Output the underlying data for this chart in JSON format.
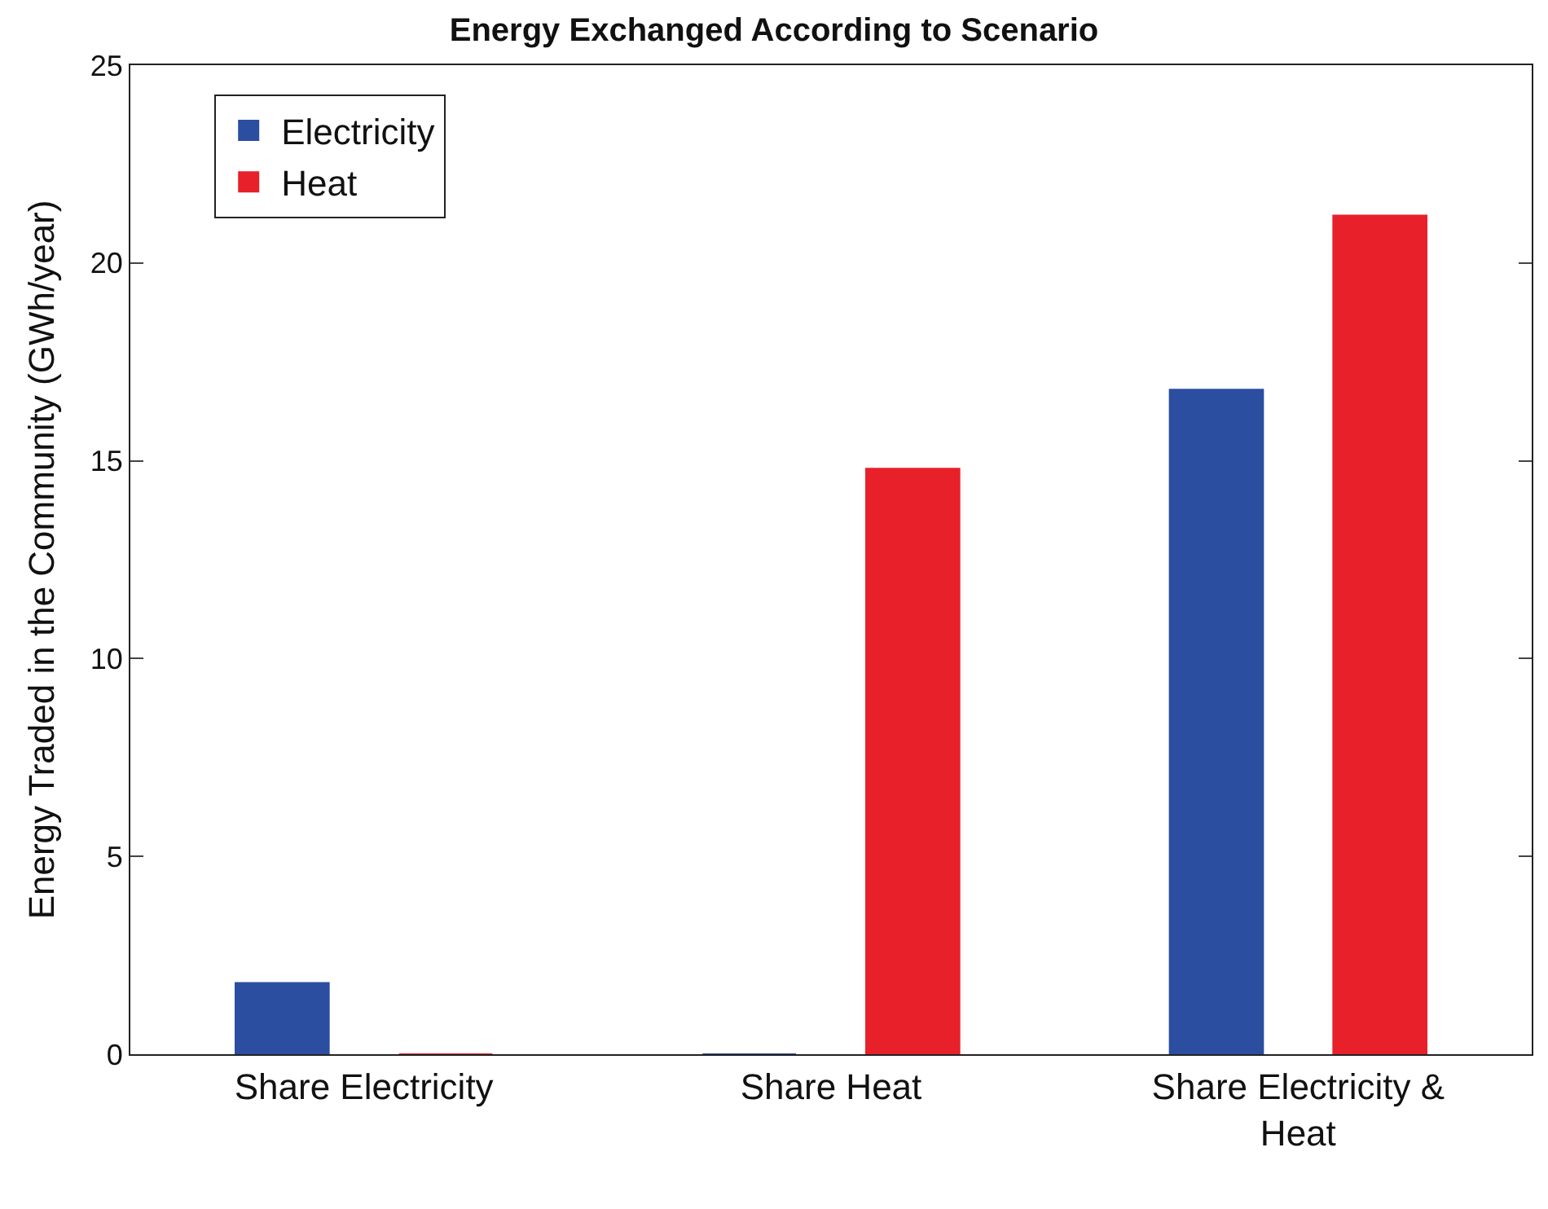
{
  "chart_data": {
    "type": "bar",
    "title": "Energy Exchanged According to Scenario",
    "ylabel": "Energy Traded in the Community (GWh/year)",
    "categories": [
      "Share Electricity",
      "Share Heat",
      "Share Electricity & Heat"
    ],
    "series": [
      {
        "name": "Electricity",
        "color": "#2b4ea0",
        "values": [
          1.8,
          0,
          16.8
        ]
      },
      {
        "name": "Heat",
        "color": "#e8202a",
        "values": [
          0,
          14.8,
          21.2
        ]
      }
    ],
    "ylim": [
      0,
      25
    ],
    "yticks": [
      0,
      5,
      10,
      15,
      20,
      25
    ],
    "legend": "top left"
  }
}
